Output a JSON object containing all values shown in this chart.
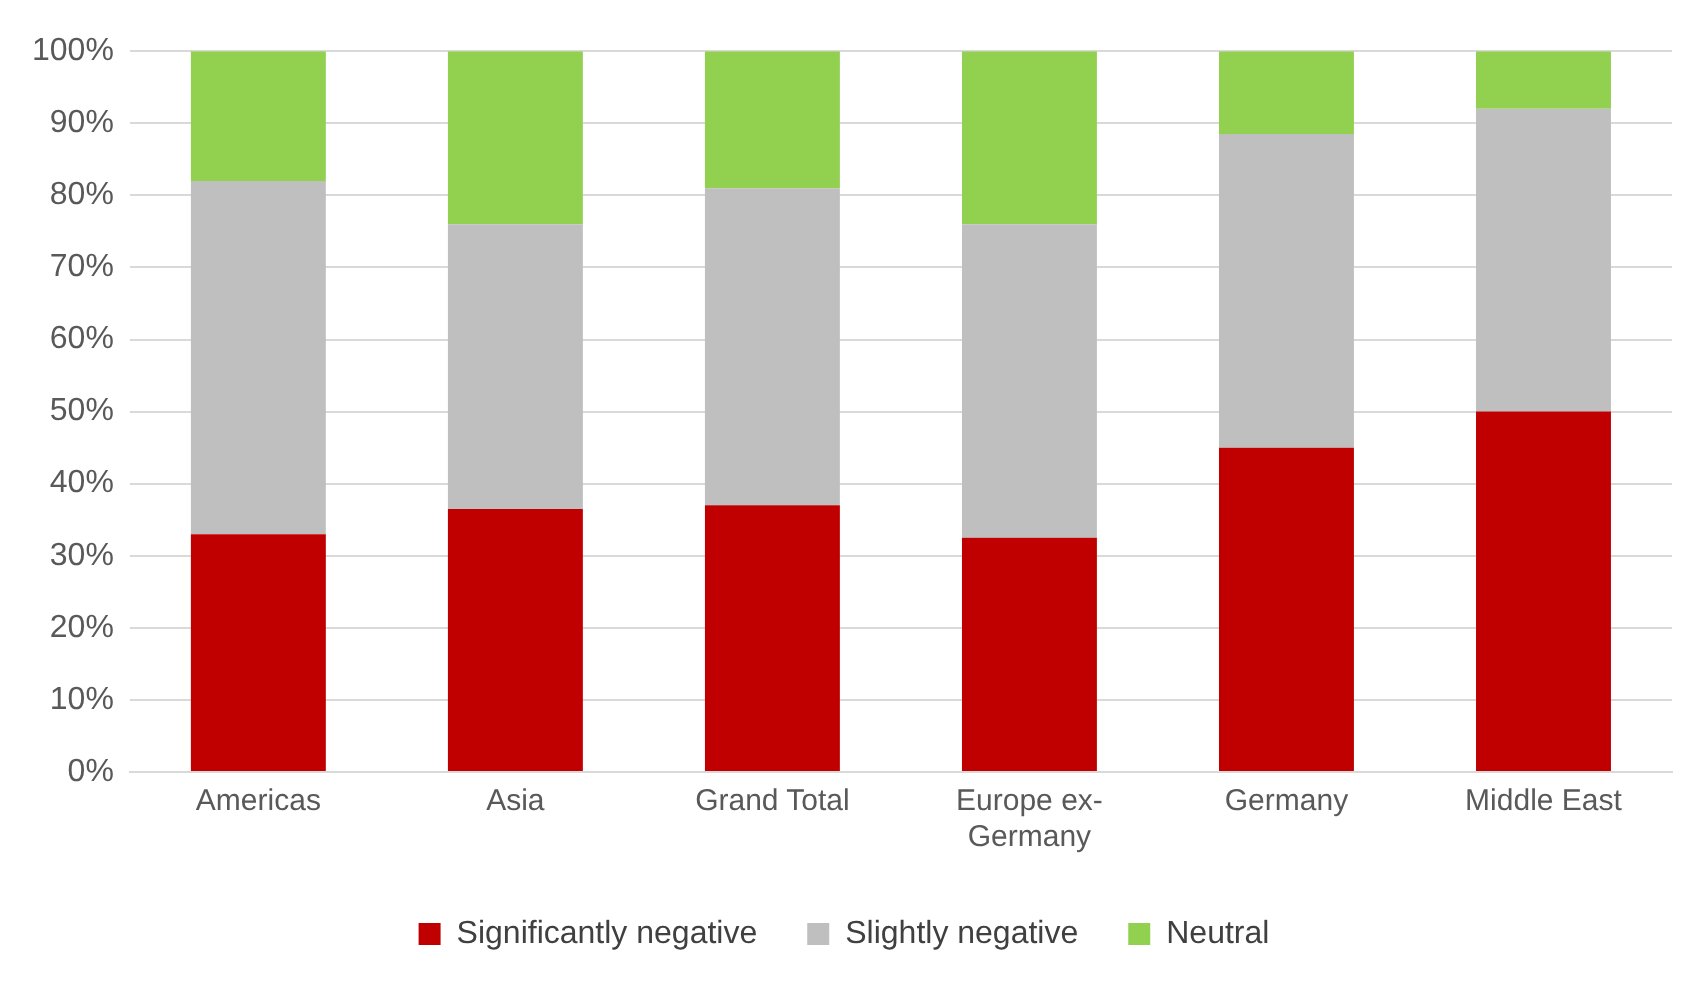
{
  "chart_data": {
    "type": "bar",
    "stacked": true,
    "categories": [
      "Americas",
      "Asia",
      "Grand Total",
      "Europe ex-Germany",
      "Germany",
      "Middle East"
    ],
    "series": [
      {
        "name": "Significantly negative",
        "color": "#c00000",
        "values": [
          33,
          36.5,
          37,
          32.5,
          45,
          50
        ]
      },
      {
        "name": "Slightly negative",
        "color": "#bfbfbf",
        "values": [
          49,
          39.5,
          44,
          43.5,
          43.5,
          42
        ]
      },
      {
        "name": "Neutral",
        "color": "#92d050",
        "values": [
          18,
          24,
          19,
          24,
          11.5,
          8
        ]
      }
    ],
    "ylim": [
      0,
      100
    ],
    "yticks": [
      {
        "value": 0,
        "label": "0%"
      },
      {
        "value": 10,
        "label": "10%"
      },
      {
        "value": 20,
        "label": "20%"
      },
      {
        "value": 30,
        "label": "30%"
      },
      {
        "value": 40,
        "label": "40%"
      },
      {
        "value": 50,
        "label": "50%"
      },
      {
        "value": 60,
        "label": "60%"
      },
      {
        "value": 70,
        "label": "70%"
      },
      {
        "value": 80,
        "label": "80%"
      },
      {
        "value": 90,
        "label": "90%"
      },
      {
        "value": 100,
        "label": "100%"
      }
    ],
    "grid": "y",
    "legend": "bottom"
  }
}
